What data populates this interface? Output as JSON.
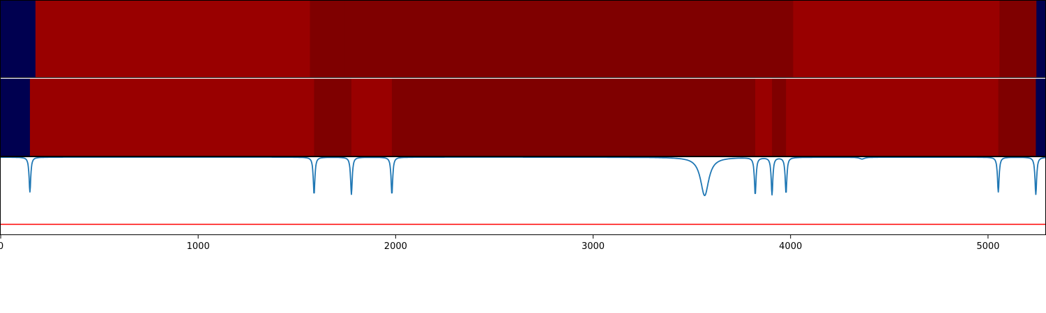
{
  "chart_data": {
    "type": "heatmap",
    "title": "",
    "xlabel": "",
    "ylabel": "",
    "xlim": [
      0,
      5290
    ],
    "grid": false,
    "legend": "none",
    "x_ticks": [
      {
        "value": 0,
        "label": "0"
      },
      {
        "value": 1000,
        "label": "1000"
      },
      {
        "value": 2000,
        "label": "2000"
      },
      {
        "value": 3000,
        "label": "3000"
      },
      {
        "value": 4000,
        "label": "4000"
      },
      {
        "value": 5000,
        "label": "5000"
      }
    ],
    "colors": {
      "low": "#000050",
      "mid": "#990000",
      "high": "#7f0000",
      "signal_line": "#1f77b4",
      "threshold_line": "#ff0000"
    },
    "segmentation_tracks": [
      {
        "segments": [
          {
            "start": 0,
            "end": 176,
            "level": "low"
          },
          {
            "start": 176,
            "end": 1566,
            "level": "mid"
          },
          {
            "start": 1566,
            "end": 1740,
            "level": "high"
          },
          {
            "start": 1740,
            "end": 4013,
            "level": "high"
          },
          {
            "start": 4013,
            "end": 5058,
            "level": "mid"
          },
          {
            "start": 5058,
            "end": 5245,
            "level": "high"
          },
          {
            "start": 5245,
            "end": 5290,
            "level": "low"
          }
        ]
      },
      {
        "segments": [
          {
            "start": 0,
            "end": 148,
            "level": "low"
          },
          {
            "start": 148,
            "end": 1587,
            "level": "mid"
          },
          {
            "start": 1587,
            "end": 1776,
            "level": "high"
          },
          {
            "start": 1776,
            "end": 1981,
            "level": "mid"
          },
          {
            "start": 1981,
            "end": 3821,
            "level": "high"
          },
          {
            "start": 3821,
            "end": 3906,
            "level": "mid"
          },
          {
            "start": 3906,
            "end": 3977,
            "level": "high"
          },
          {
            "start": 3977,
            "end": 5052,
            "level": "mid"
          },
          {
            "start": 5052,
            "end": 5242,
            "level": "high"
          },
          {
            "start": 5242,
            "end": 5290,
            "level": "low"
          }
        ]
      }
    ],
    "signal": {
      "baseline": 1.0,
      "ylim": [
        -0.3,
        1.0
      ],
      "threshold": -0.12,
      "dips": [
        {
          "x": 148,
          "depth": 0.58,
          "width": 5
        },
        {
          "x": 1587,
          "depth": 0.62,
          "width": 5
        },
        {
          "x": 1776,
          "depth": 0.62,
          "width": 5
        },
        {
          "x": 1981,
          "depth": 0.62,
          "width": 5
        },
        {
          "x": 3565,
          "depth": 0.64,
          "width": 25
        },
        {
          "x": 3821,
          "depth": 0.62,
          "width": 5
        },
        {
          "x": 3906,
          "depth": 0.62,
          "width": 5
        },
        {
          "x": 3977,
          "depth": 0.6,
          "width": 5
        },
        {
          "x": 4362,
          "depth": 0.03,
          "width": 15
        },
        {
          "x": 5052,
          "depth": 0.58,
          "width": 5
        },
        {
          "x": 5242,
          "depth": 0.62,
          "width": 5
        }
      ]
    }
  }
}
